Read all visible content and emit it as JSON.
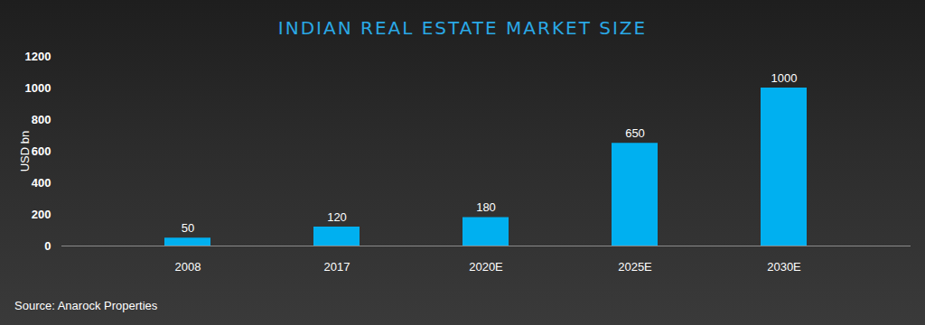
{
  "chart_data": {
    "type": "bar",
    "title": "INDIAN REAL ESTATE MARKET SIZE",
    "categories": [
      "2008",
      "2017",
      "2020E",
      "2025E",
      "2030E"
    ],
    "values": [
      50,
      120,
      180,
      650,
      1000
    ],
    "color": "#00b0f0",
    "ylabel": "USD bn",
    "ylim": [
      0,
      1200
    ],
    "yticks": [
      0,
      200,
      400,
      600,
      800,
      1000,
      1200
    ],
    "grid": false,
    "data_labels": true,
    "caption": "Source: Anarock Properties"
  }
}
